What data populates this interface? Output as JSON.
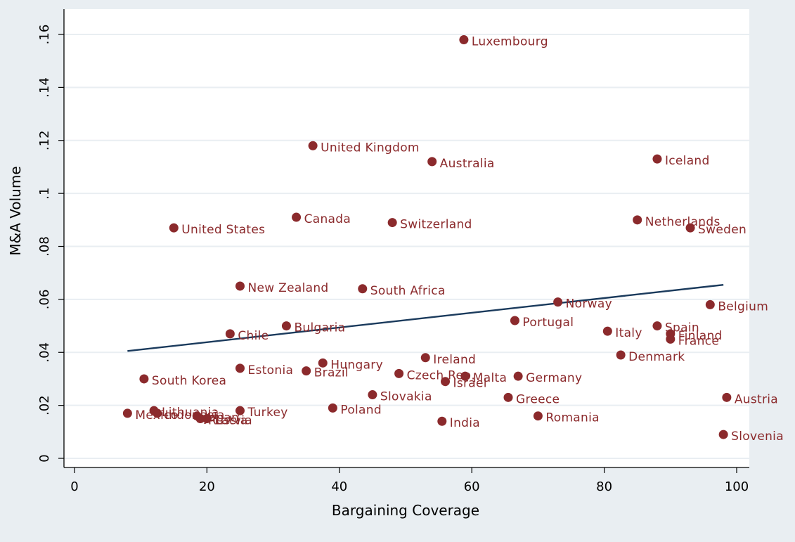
{
  "chart_data": {
    "type": "scatter",
    "xlabel": "Bargaining Coverage",
    "ylabel": "M&A Volume",
    "xlim": [
      0,
      100
    ],
    "ylim": [
      0,
      0.16
    ],
    "x_ticks": [
      "0",
      "20",
      "40",
      "60",
      "80",
      "100"
    ],
    "y_ticks": [
      ".16",
      ".14",
      ".12",
      ".1",
      ".08",
      ".06",
      ".04",
      ".02",
      "0"
    ],
    "grid": "horizontal",
    "colors": {
      "outer_background": "#e9eef2",
      "plot_background": "#ffffff",
      "gridline": "#e9eef2",
      "marker": "#8b2a2c",
      "label": "#8b2a2c",
      "fit_line": "#1a3a5c",
      "axis": "#000000"
    },
    "points": [
      {
        "label": "Luxembourg",
        "x": 58.8,
        "y": 0.158
      },
      {
        "label": "United Kingdom",
        "x": 36.0,
        "y": 0.118
      },
      {
        "label": "Australia",
        "x": 54.0,
        "y": 0.112
      },
      {
        "label": "Iceland",
        "x": 88.0,
        "y": 0.113
      },
      {
        "label": "Canada",
        "x": 33.5,
        "y": 0.091
      },
      {
        "label": "United States",
        "x": 15.0,
        "y": 0.087
      },
      {
        "label": "Switzerland",
        "x": 48.0,
        "y": 0.089
      },
      {
        "label": "Netherlands",
        "x": 85.0,
        "y": 0.09
      },
      {
        "label": "Sweden",
        "x": 93.0,
        "y": 0.087
      },
      {
        "label": "New Zealand",
        "x": 25.0,
        "y": 0.065
      },
      {
        "label": "South Africa",
        "x": 43.5,
        "y": 0.064
      },
      {
        "label": "Norway",
        "x": 73.0,
        "y": 0.059
      },
      {
        "label": "Belgium",
        "x": 96.0,
        "y": 0.058
      },
      {
        "label": "Portugal",
        "x": 66.5,
        "y": 0.052
      },
      {
        "label": "Chile",
        "x": 23.5,
        "y": 0.047
      },
      {
        "label": "Bulgaria",
        "x": 32.0,
        "y": 0.05
      },
      {
        "label": "Italy",
        "x": 80.5,
        "y": 0.048
      },
      {
        "label": "Spain",
        "x": 88.0,
        "y": 0.05
      },
      {
        "label": "Finland",
        "x": 90.0,
        "y": 0.047
      },
      {
        "label": "France",
        "x": 90.0,
        "y": 0.045
      },
      {
        "label": "Denmark",
        "x": 82.5,
        "y": 0.039
      },
      {
        "label": "Ireland",
        "x": 53.0,
        "y": 0.038
      },
      {
        "label": "Estonia",
        "x": 25.0,
        "y": 0.034
      },
      {
        "label": "Hungary",
        "x": 37.5,
        "y": 0.036
      },
      {
        "label": "Brazil",
        "x": 35.0,
        "y": 0.033
      },
      {
        "label": "Czech Rep.",
        "x": 49.0,
        "y": 0.032
      },
      {
        "label": "Malta",
        "x": 59.0,
        "y": 0.031
      },
      {
        "label": "Germany",
        "x": 67.0,
        "y": 0.031
      },
      {
        "label": "Israel",
        "x": 56.0,
        "y": 0.029
      },
      {
        "label": "South Korea",
        "x": 10.5,
        "y": 0.03
      },
      {
        "label": "Slovakia",
        "x": 45.0,
        "y": 0.024
      },
      {
        "label": "Greece",
        "x": 65.5,
        "y": 0.023
      },
      {
        "label": "Austria",
        "x": 98.5,
        "y": 0.023
      },
      {
        "label": "Turkey",
        "x": 25.0,
        "y": 0.018
      },
      {
        "label": "Poland",
        "x": 39.0,
        "y": 0.019
      },
      {
        "label": "Romania",
        "x": 70.0,
        "y": 0.016
      },
      {
        "label": "India",
        "x": 55.5,
        "y": 0.014
      },
      {
        "label": "Slovenia",
        "x": 98.0,
        "y": 0.009
      },
      {
        "label": "Mexico",
        "x": 8.0,
        "y": 0.017
      },
      {
        "label": "Lithuania",
        "x": 12.0,
        "y": 0.018
      },
      {
        "label": "Indonesia",
        "x": 12.5,
        "y": 0.017
      },
      {
        "label": "Japan",
        "x": 18.5,
        "y": 0.016
      },
      {
        "label": "Latvia",
        "x": 20.0,
        "y": 0.015
      },
      {
        "label": "Russia",
        "x": 19.0,
        "y": 0.015
      }
    ],
    "fit_line": {
      "x": [
        8,
        98
      ],
      "y": [
        0.0405,
        0.0655
      ]
    }
  }
}
